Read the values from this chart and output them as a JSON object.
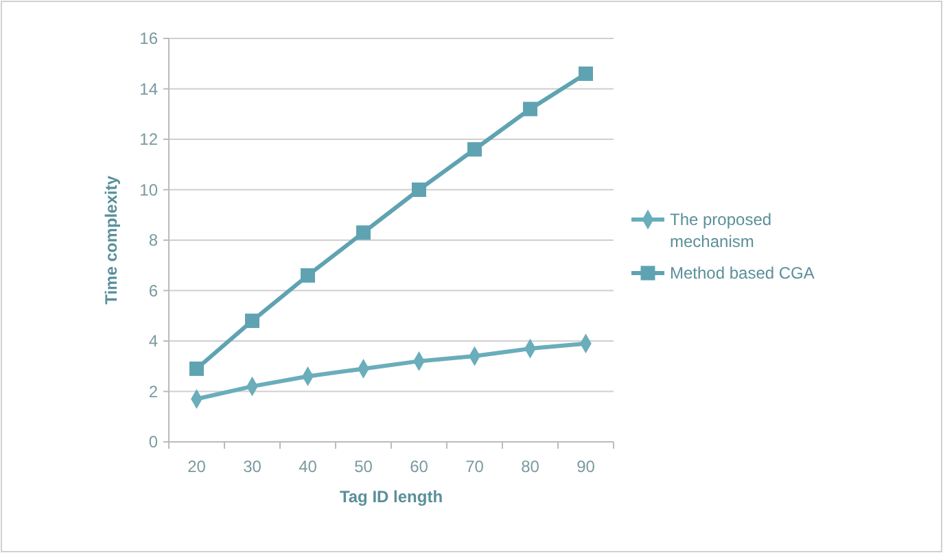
{
  "chart_data": {
    "type": "line",
    "xlabel": "Tag ID length",
    "ylabel": "Time complexity",
    "categories": [
      "20",
      "30",
      "40",
      "50",
      "60",
      "70",
      "80",
      "90"
    ],
    "ylim": [
      0,
      16
    ],
    "yticks": [
      0,
      2,
      4,
      6,
      8,
      10,
      12,
      14,
      16
    ],
    "grid": "y",
    "legend": "right",
    "series": [
      {
        "name": "The proposed mechanism",
        "color": "#6aadbb",
        "marker": "diamond",
        "values": [
          1.7,
          2.2,
          2.6,
          2.9,
          3.2,
          3.4,
          3.7,
          3.9
        ]
      },
      {
        "name": "Method based CGA",
        "color": "#5fa3b2",
        "marker": "square",
        "values": [
          2.9,
          4.8,
          6.6,
          8.3,
          10.0,
          11.6,
          13.2,
          14.6
        ]
      }
    ]
  }
}
